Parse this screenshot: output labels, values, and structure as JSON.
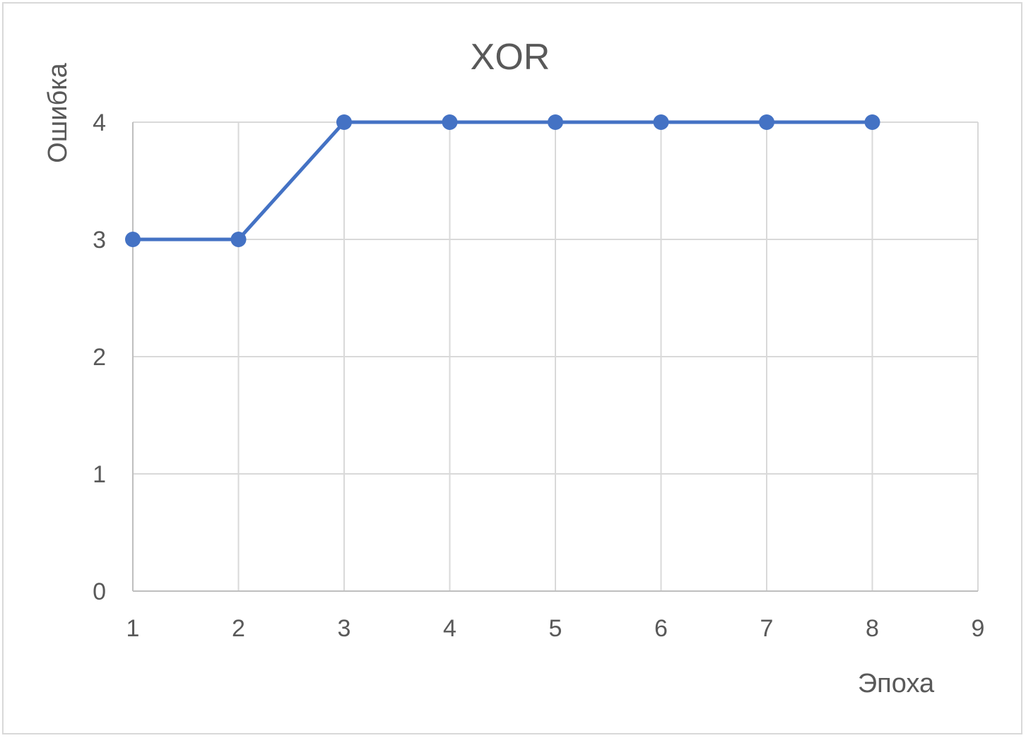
{
  "chart_data": {
    "type": "line",
    "title": "XOR",
    "xlabel": "Эпоха",
    "ylabel": "Ошибка",
    "x": [
      1,
      2,
      3,
      4,
      5,
      6,
      7,
      8
    ],
    "series": [
      {
        "values": [
          3,
          3,
          4,
          4,
          4,
          4,
          4,
          4
        ],
        "color": "#4472C4"
      }
    ],
    "xlim": [
      1,
      9
    ],
    "ylim": [
      0,
      4
    ],
    "xticks": [
      "1",
      "2",
      "3",
      "4",
      "5",
      "6",
      "7",
      "8",
      "9"
    ],
    "yticks": [
      "0",
      "1",
      "2",
      "3",
      "4"
    ],
    "grid": true,
    "legend": "none"
  }
}
